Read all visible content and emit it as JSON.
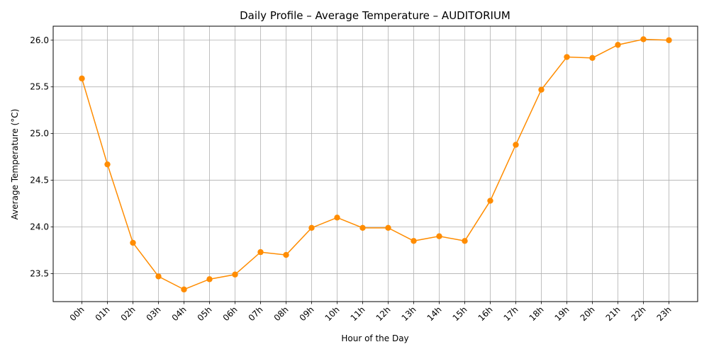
{
  "chart_data": {
    "type": "line",
    "title": "Daily Profile – Average Temperature – AUDITORIUM",
    "xlabel": "Hour of the Day",
    "ylabel": "Average Temperature (°C)",
    "categories": [
      "00h",
      "01h",
      "02h",
      "03h",
      "04h",
      "05h",
      "06h",
      "07h",
      "08h",
      "09h",
      "10h",
      "11h",
      "12h",
      "13h",
      "14h",
      "15h",
      "16h",
      "17h",
      "18h",
      "19h",
      "20h",
      "21h",
      "22h",
      "23h"
    ],
    "values": [
      25.59,
      24.67,
      23.83,
      23.47,
      23.33,
      23.44,
      23.49,
      23.73,
      23.7,
      23.99,
      24.1,
      23.99,
      23.99,
      23.85,
      23.9,
      23.85,
      24.28,
      24.88,
      25.47,
      25.82,
      25.81,
      25.95,
      26.01,
      26.0
    ],
    "ylim": [
      23.2,
      26.15
    ],
    "yticks": [
      23.5,
      24.0,
      24.5,
      25.0,
      25.5,
      26.0
    ],
    "ytick_labels": [
      "23.5",
      "24.0",
      "24.5",
      "25.0",
      "25.5",
      "26.0"
    ],
    "grid": true,
    "color": "#ff8c00",
    "marker": "circle"
  }
}
